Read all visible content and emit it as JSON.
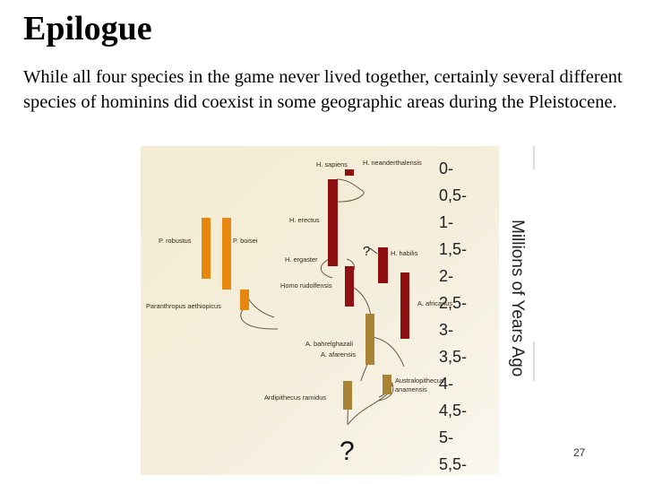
{
  "slide": {
    "title": "Epilogue",
    "body": "While all four species in the game never lived together, certainly several different species of hominins did coexist in some geographic areas during the Pleistocene.",
    "page_number": "27"
  },
  "figure": {
    "axis_title": "Millions of Years Ago",
    "time_scale": [
      "0-",
      "0,5-",
      "1-",
      "1,5-",
      "2-",
      "2,5-",
      "3-",
      "3,5-",
      "4-",
      "4,5-",
      "5-",
      "5,5-"
    ],
    "species_labels": {
      "h_sapiens": "H. sapiens",
      "h_neanderthalensis": "H. neanderthalensis",
      "h_erectus": "H. erectus",
      "p_robustus": "P. robustus",
      "p_boisei": "P. boisei",
      "h_habilis": "H. habilis",
      "h_ergaster": "H. ergaster",
      "homo_rudolfensis": "Homo rudolfensis",
      "a_africanus": "A. africanus",
      "paranthropus_aethiopicus": "Paranthropus aethiopicus",
      "a_bahrelghazali": "A. bahrelghazali",
      "a_afarensis": "A. afarensis",
      "australopithecus_anamensis": "Australopithecus anamensis",
      "ardipithecus_ramidus": "Ardipithecus ramidus"
    },
    "uncertain_marks": [
      "?",
      "?"
    ],
    "colors": {
      "homo": "#8e1010",
      "paranthropus": "#e8870e",
      "australopithecus": "#a98436",
      "background": "#f2ecd2"
    }
  }
}
